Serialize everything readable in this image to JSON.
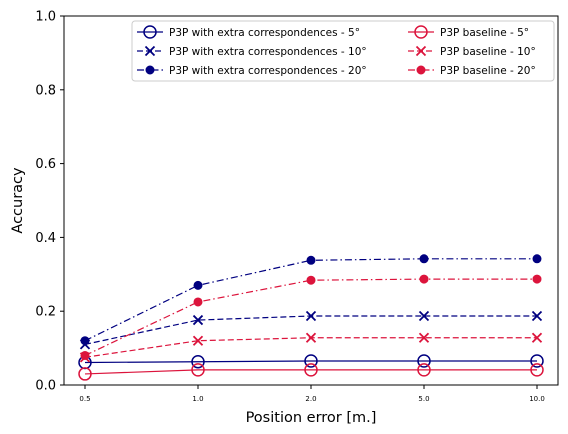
{
  "chart_data": {
    "type": "line",
    "title": "",
    "xlabel": "Position error [m.]",
    "ylabel": "Accuracy",
    "categories": [
      "0.5",
      "1.0",
      "2.0",
      "5.0",
      "10.0"
    ],
    "ylim": [
      0.0,
      1.0
    ],
    "yticks": [
      "0.0",
      "0.2",
      "0.4",
      "0.6",
      "0.8",
      "1.0"
    ],
    "grid": false,
    "legend_position": "top-right",
    "colors": {
      "extra": "#000080",
      "baseline": "#dc143c"
    },
    "series": [
      {
        "name": "P3P with extra correspondences - 5°",
        "group": "extra",
        "marker": "circle-open",
        "linestyle": "solid",
        "values": [
          0.061,
          0.063,
          0.065,
          0.065,
          0.065
        ]
      },
      {
        "name": "P3P with extra correspondences - 10°",
        "group": "extra",
        "marker": "x",
        "linestyle": "dashed",
        "values": [
          0.11,
          0.176,
          0.187,
          0.187,
          0.187
        ]
      },
      {
        "name": "P3P with extra correspondences - 20°",
        "group": "extra",
        "marker": "dot",
        "linestyle": "dashdot",
        "values": [
          0.12,
          0.27,
          0.338,
          0.342,
          0.342
        ]
      },
      {
        "name": "P3P baseline - 5°",
        "group": "baseline",
        "marker": "circle-open",
        "linestyle": "solid",
        "values": [
          0.03,
          0.041,
          0.041,
          0.041,
          0.041
        ]
      },
      {
        "name": "P3P baseline - 10°",
        "group": "baseline",
        "marker": "x",
        "linestyle": "dashed",
        "values": [
          0.075,
          0.12,
          0.128,
          0.128,
          0.128
        ]
      },
      {
        "name": "P3P baseline - 20°",
        "group": "baseline",
        "marker": "dot",
        "linestyle": "dashdot",
        "values": [
          0.08,
          0.225,
          0.284,
          0.287,
          0.287
        ]
      }
    ]
  }
}
